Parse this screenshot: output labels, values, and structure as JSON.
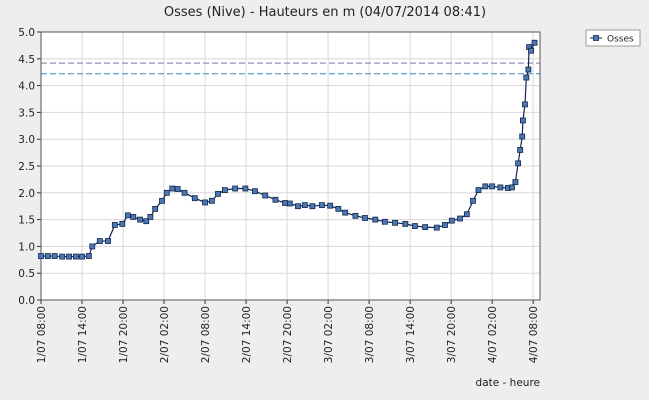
{
  "chart_data": {
    "type": "line",
    "title": "Osses (Nive) - Hauteurs en m (04/07/2014 08:41)",
    "x_label": "date - heure",
    "x": [
      8,
      9,
      10,
      11.1,
      12.1,
      13.1,
      14,
      15,
      15.5,
      16.6,
      17.8,
      18.8,
      19.9,
      20.7,
      21.5,
      22.5,
      23.4,
      24,
      24.7,
      25.7,
      26.4,
      27.2,
      28,
      29,
      30.5,
      32,
      33,
      33.9,
      34.9,
      36.4,
      37.9,
      39.3,
      40.8,
      42.3,
      43.7,
      44.4,
      45.6,
      46.6,
      47.7,
      49.1,
      50.3,
      51.5,
      52.5,
      54,
      55.4,
      56.9,
      58.3,
      59.8,
      61.3,
      62.7,
      64.2,
      65.9,
      67.1,
      68.1,
      69.3,
      70.3,
      71.2,
      72,
      73,
      74,
      75.2,
      76.3,
      76.9,
      77.4,
      77.8,
      78.1,
      78.4,
      78.5,
      78.8,
      79,
      79.3,
      79.4,
      79.7,
      80.2
    ],
    "series": [
      {
        "name": "Osses",
        "color": "#4a78b0",
        "line_color": "#14264f",
        "values": [
          0.82,
          0.82,
          0.82,
          0.81,
          0.81,
          0.81,
          0.81,
          0.82,
          1.0,
          1.1,
          1.1,
          1.4,
          1.42,
          1.58,
          1.55,
          1.5,
          1.47,
          1.55,
          1.7,
          1.85,
          2.0,
          2.08,
          2.07,
          2.0,
          1.9,
          1.82,
          1.85,
          1.98,
          2.05,
          2.08,
          2.08,
          2.03,
          1.95,
          1.87,
          1.81,
          1.8,
          1.75,
          1.77,
          1.75,
          1.77,
          1.76,
          1.7,
          1.63,
          1.57,
          1.53,
          1.5,
          1.46,
          1.44,
          1.42,
          1.38,
          1.36,
          1.35,
          1.4,
          1.48,
          1.52,
          1.6,
          1.85,
          2.05,
          2.12,
          2.12,
          2.1,
          2.09,
          2.1,
          2.2,
          2.55,
          2.8,
          3.05,
          3.35,
          3.65,
          4.15,
          4.3,
          4.72,
          4.65,
          4.8
        ]
      }
    ],
    "reference_lines": [
      {
        "value": 4.42,
        "color": "#7a7aa8"
      },
      {
        "value": 4.22,
        "color": "#3a8ac0"
      }
    ],
    "xlim": [
      8,
      81
    ],
    "ylim": [
      0,
      5
    ],
    "xticks": [
      {
        "value": 8,
        "label": "1/07 08:00"
      },
      {
        "value": 14,
        "label": "1/07 14:00"
      },
      {
        "value": 20,
        "label": "1/07 20:00"
      },
      {
        "value": 26,
        "label": "2/07 02:00"
      },
      {
        "value": 32,
        "label": "2/07 08:00"
      },
      {
        "value": 38,
        "label": "2/07 14:00"
      },
      {
        "value": 44,
        "label": "2/07 20:00"
      },
      {
        "value": 50,
        "label": "3/07 02:00"
      },
      {
        "value": 56,
        "label": "3/07 08:00"
      },
      {
        "value": 62,
        "label": "3/07 14:00"
      },
      {
        "value": 68,
        "label": "3/07 20:00"
      },
      {
        "value": 74,
        "label": "4/07 02:00"
      },
      {
        "value": 80,
        "label": "4/07 08:00"
      }
    ],
    "yticks": [
      {
        "value": 0,
        "label": "0.0"
      },
      {
        "value": 0.5,
        "label": "0.5"
      },
      {
        "value": 1,
        "label": "1.0"
      },
      {
        "value": 1.5,
        "label": "1.5"
      },
      {
        "value": 2,
        "label": "2.0"
      },
      {
        "value": 2.5,
        "label": "2.5"
      },
      {
        "value": 3,
        "label": "3.0"
      },
      {
        "value": 3.5,
        "label": "3.5"
      },
      {
        "value": 4,
        "label": "4.0"
      },
      {
        "value": 4.5,
        "label": "4.5"
      },
      {
        "value": 5,
        "label": "5.0"
      }
    ],
    "grid": true
  }
}
